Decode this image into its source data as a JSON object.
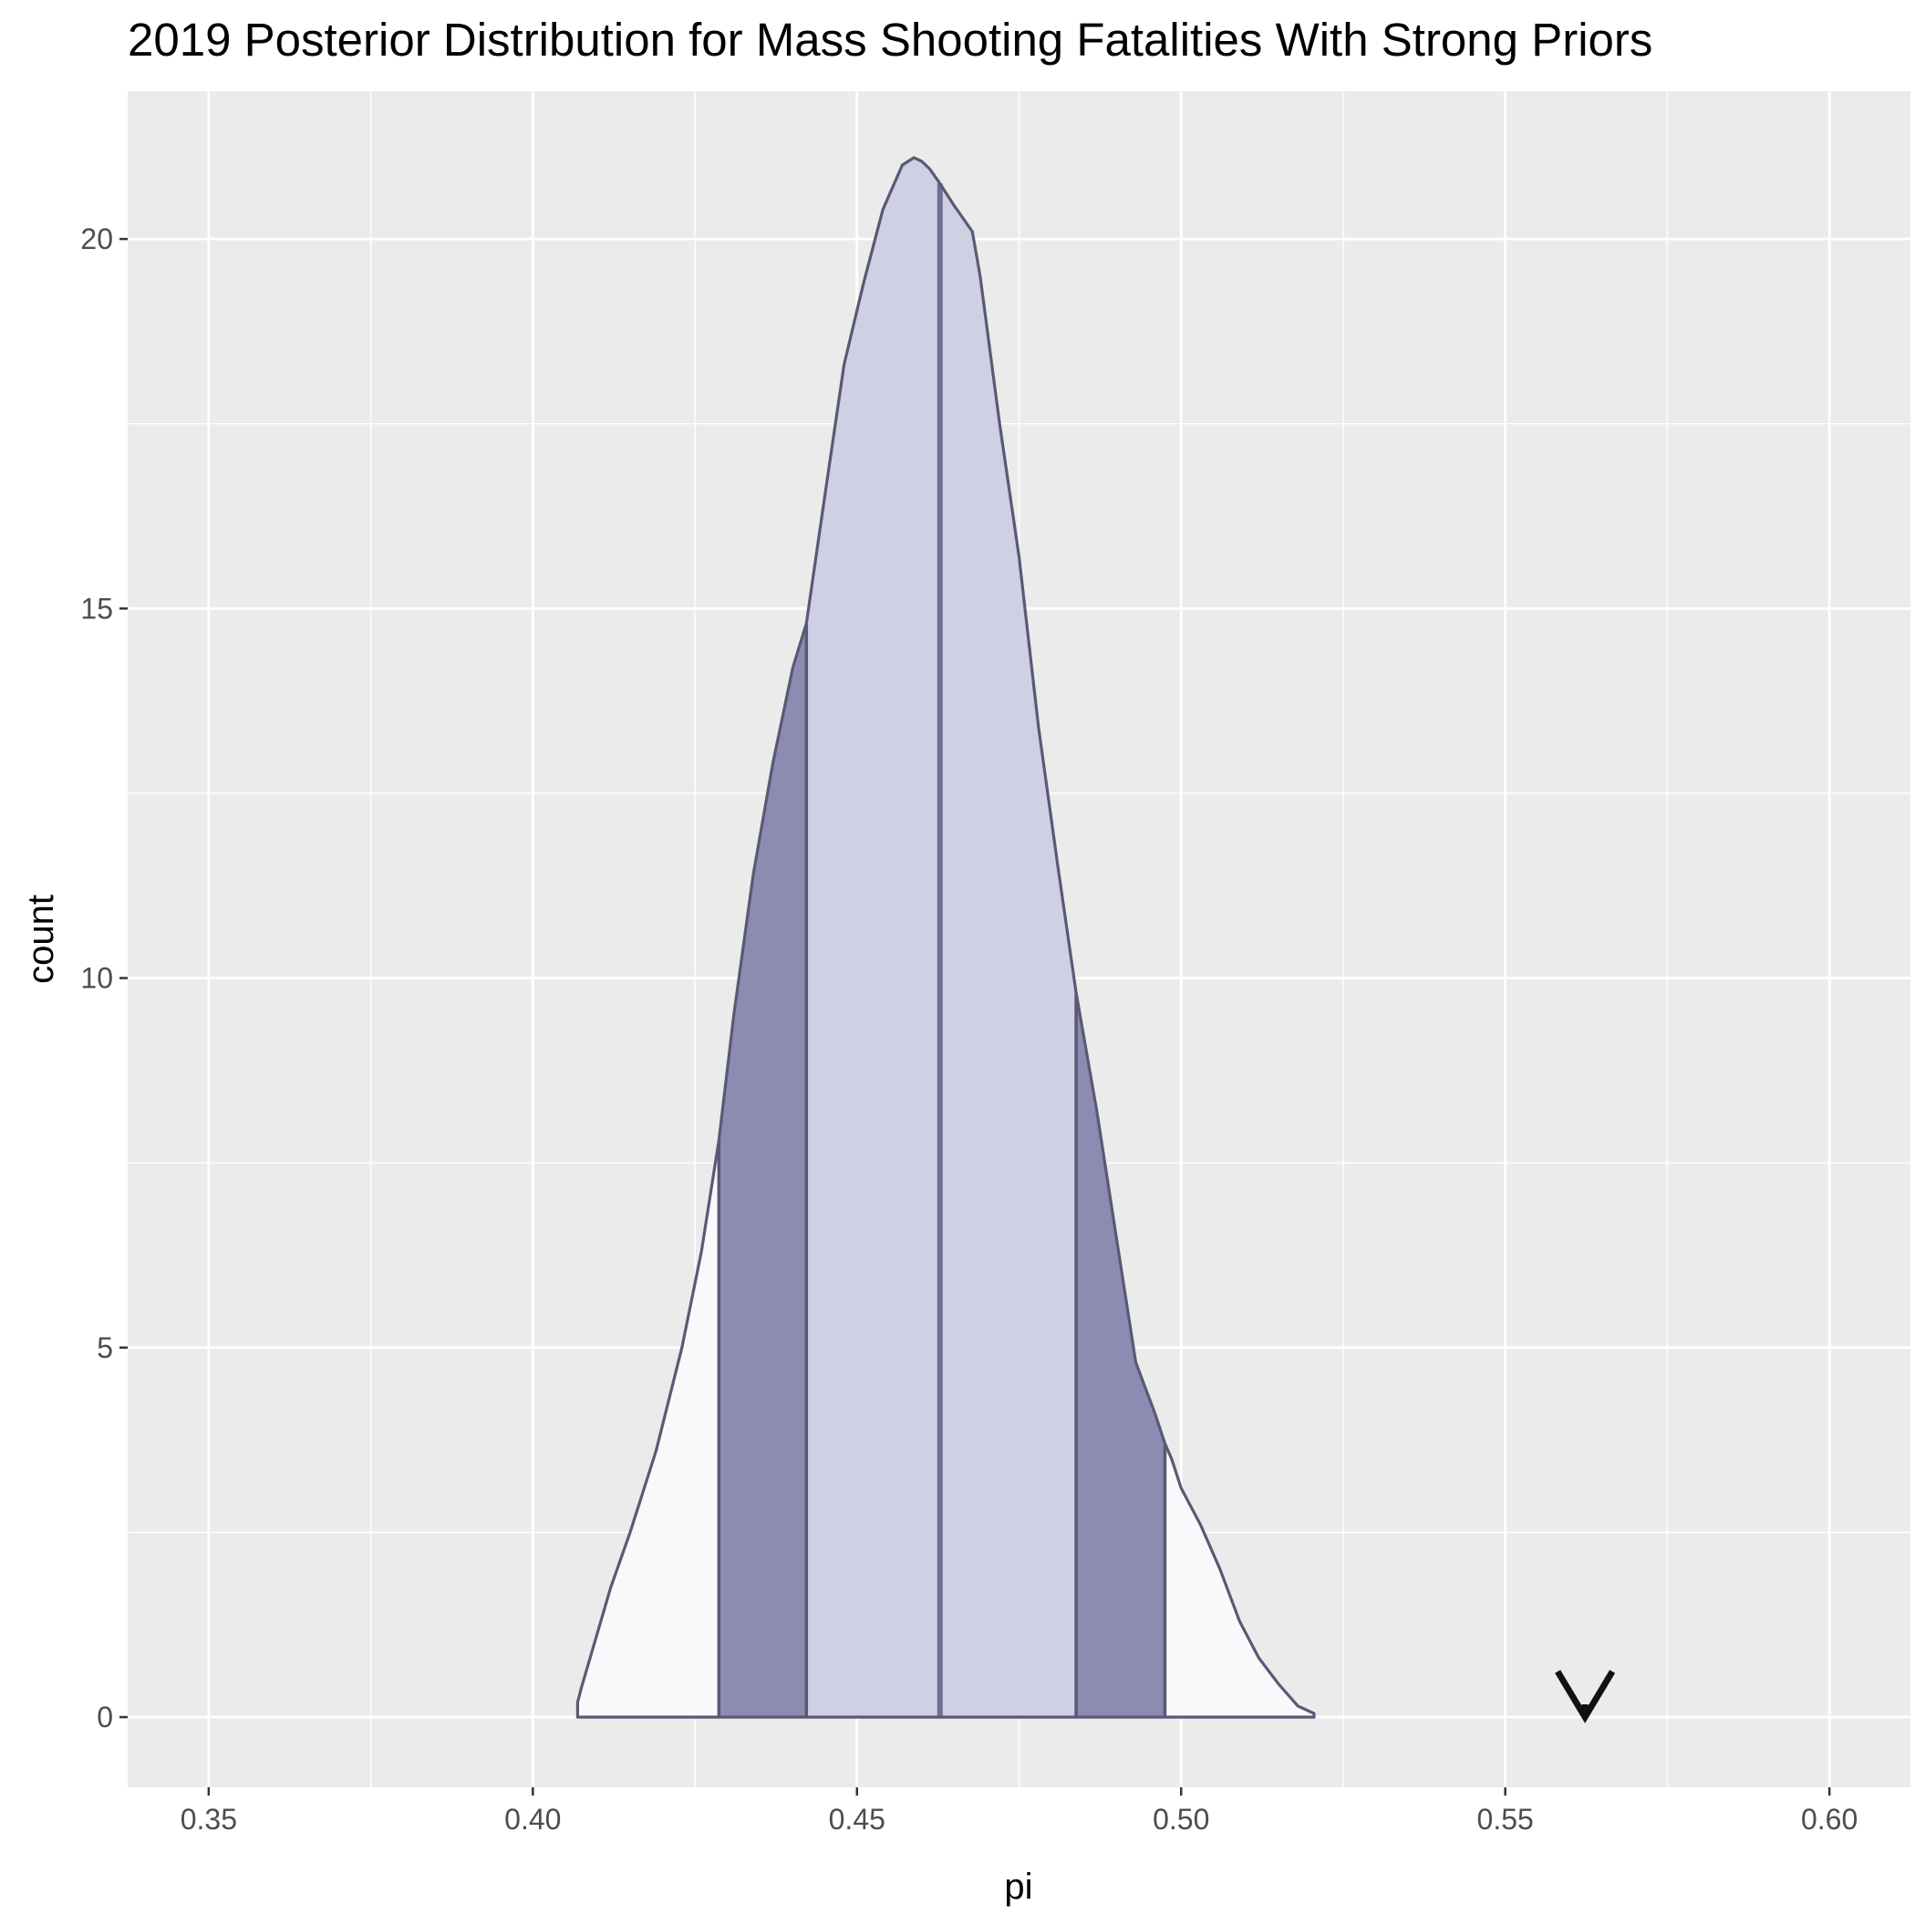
{
  "chart_data": {
    "type": "area",
    "title": "2019 Posterior Distribution for Mass Shooting Fatalities With Strong Priors",
    "xlabel": "pi",
    "ylabel": "count",
    "xlim": [
      0.3375,
      0.6125
    ],
    "ylim": [
      -0.95,
      22.0
    ],
    "xticks": [
      0.35,
      0.4,
      0.45,
      0.5,
      0.55,
      0.6
    ],
    "xtick_labels": [
      "0.35",
      "0.40",
      "0.45",
      "0.50",
      "0.55",
      "0.60"
    ],
    "yticks": [
      0,
      5,
      10,
      15,
      20
    ],
    "ytick_labels": [
      "0",
      "5",
      "10",
      "15",
      "20"
    ],
    "grid": true,
    "density": {
      "x": [
        0.4069,
        0.4075,
        0.409,
        0.412,
        0.415,
        0.419,
        0.423,
        0.426,
        0.4287,
        0.431,
        0.434,
        0.437,
        0.4401,
        0.4422,
        0.445,
        0.448,
        0.451,
        0.454,
        0.457,
        0.4588,
        0.46,
        0.4612,
        0.462,
        0.4628,
        0.465,
        0.4678,
        0.469,
        0.472,
        0.475,
        0.478,
        0.481,
        0.4838,
        0.487,
        0.49,
        0.493,
        0.496,
        0.4975,
        0.4985,
        0.5,
        0.503,
        0.506,
        0.509,
        0.512,
        0.515,
        0.518,
        0.5205
      ],
      "y": [
        0.2,
        0.4,
        0.85,
        1.75,
        2.5,
        3.6,
        5.0,
        6.3,
        7.8,
        9.5,
        11.4,
        12.9,
        14.2,
        14.8,
        16.5,
        18.3,
        19.4,
        20.4,
        21.0,
        21.1,
        21.05,
        20.95,
        20.85,
        20.75,
        20.45,
        20.1,
        19.5,
        17.5,
        15.7,
        13.4,
        11.5,
        9.8,
        8.2,
        6.5,
        4.8,
        4.1,
        3.7,
        3.5,
        3.1,
        2.6,
        2.0,
        1.3,
        0.8,
        0.45,
        0.15,
        0.05
      ]
    },
    "regions": [
      {
        "from": 0.4069,
        "to": 0.4287,
        "fill": "#f9f9fc"
      },
      {
        "from": 0.4287,
        "to": 0.4422,
        "fill": "#8c8bb1"
      },
      {
        "from": 0.4422,
        "to": 0.4838,
        "fill": "#cfd0e3"
      },
      {
        "from": 0.4838,
        "to": 0.4975,
        "fill": "#8c8bb1"
      },
      {
        "from": 0.4975,
        "to": 0.5205,
        "fill": "#f9f9fc"
      }
    ],
    "interval_bounds": [
      0.4287,
      0.4422,
      0.4838,
      0.4975
    ],
    "median": 0.4628,
    "observed_marker": {
      "x": 0.5623,
      "y": 0
    },
    "colors": {
      "panel": "#ebebeb",
      "grid": "#ffffff",
      "outline": "#5a5975",
      "median_line": "#6f6e93",
      "marker": "#111111"
    }
  }
}
